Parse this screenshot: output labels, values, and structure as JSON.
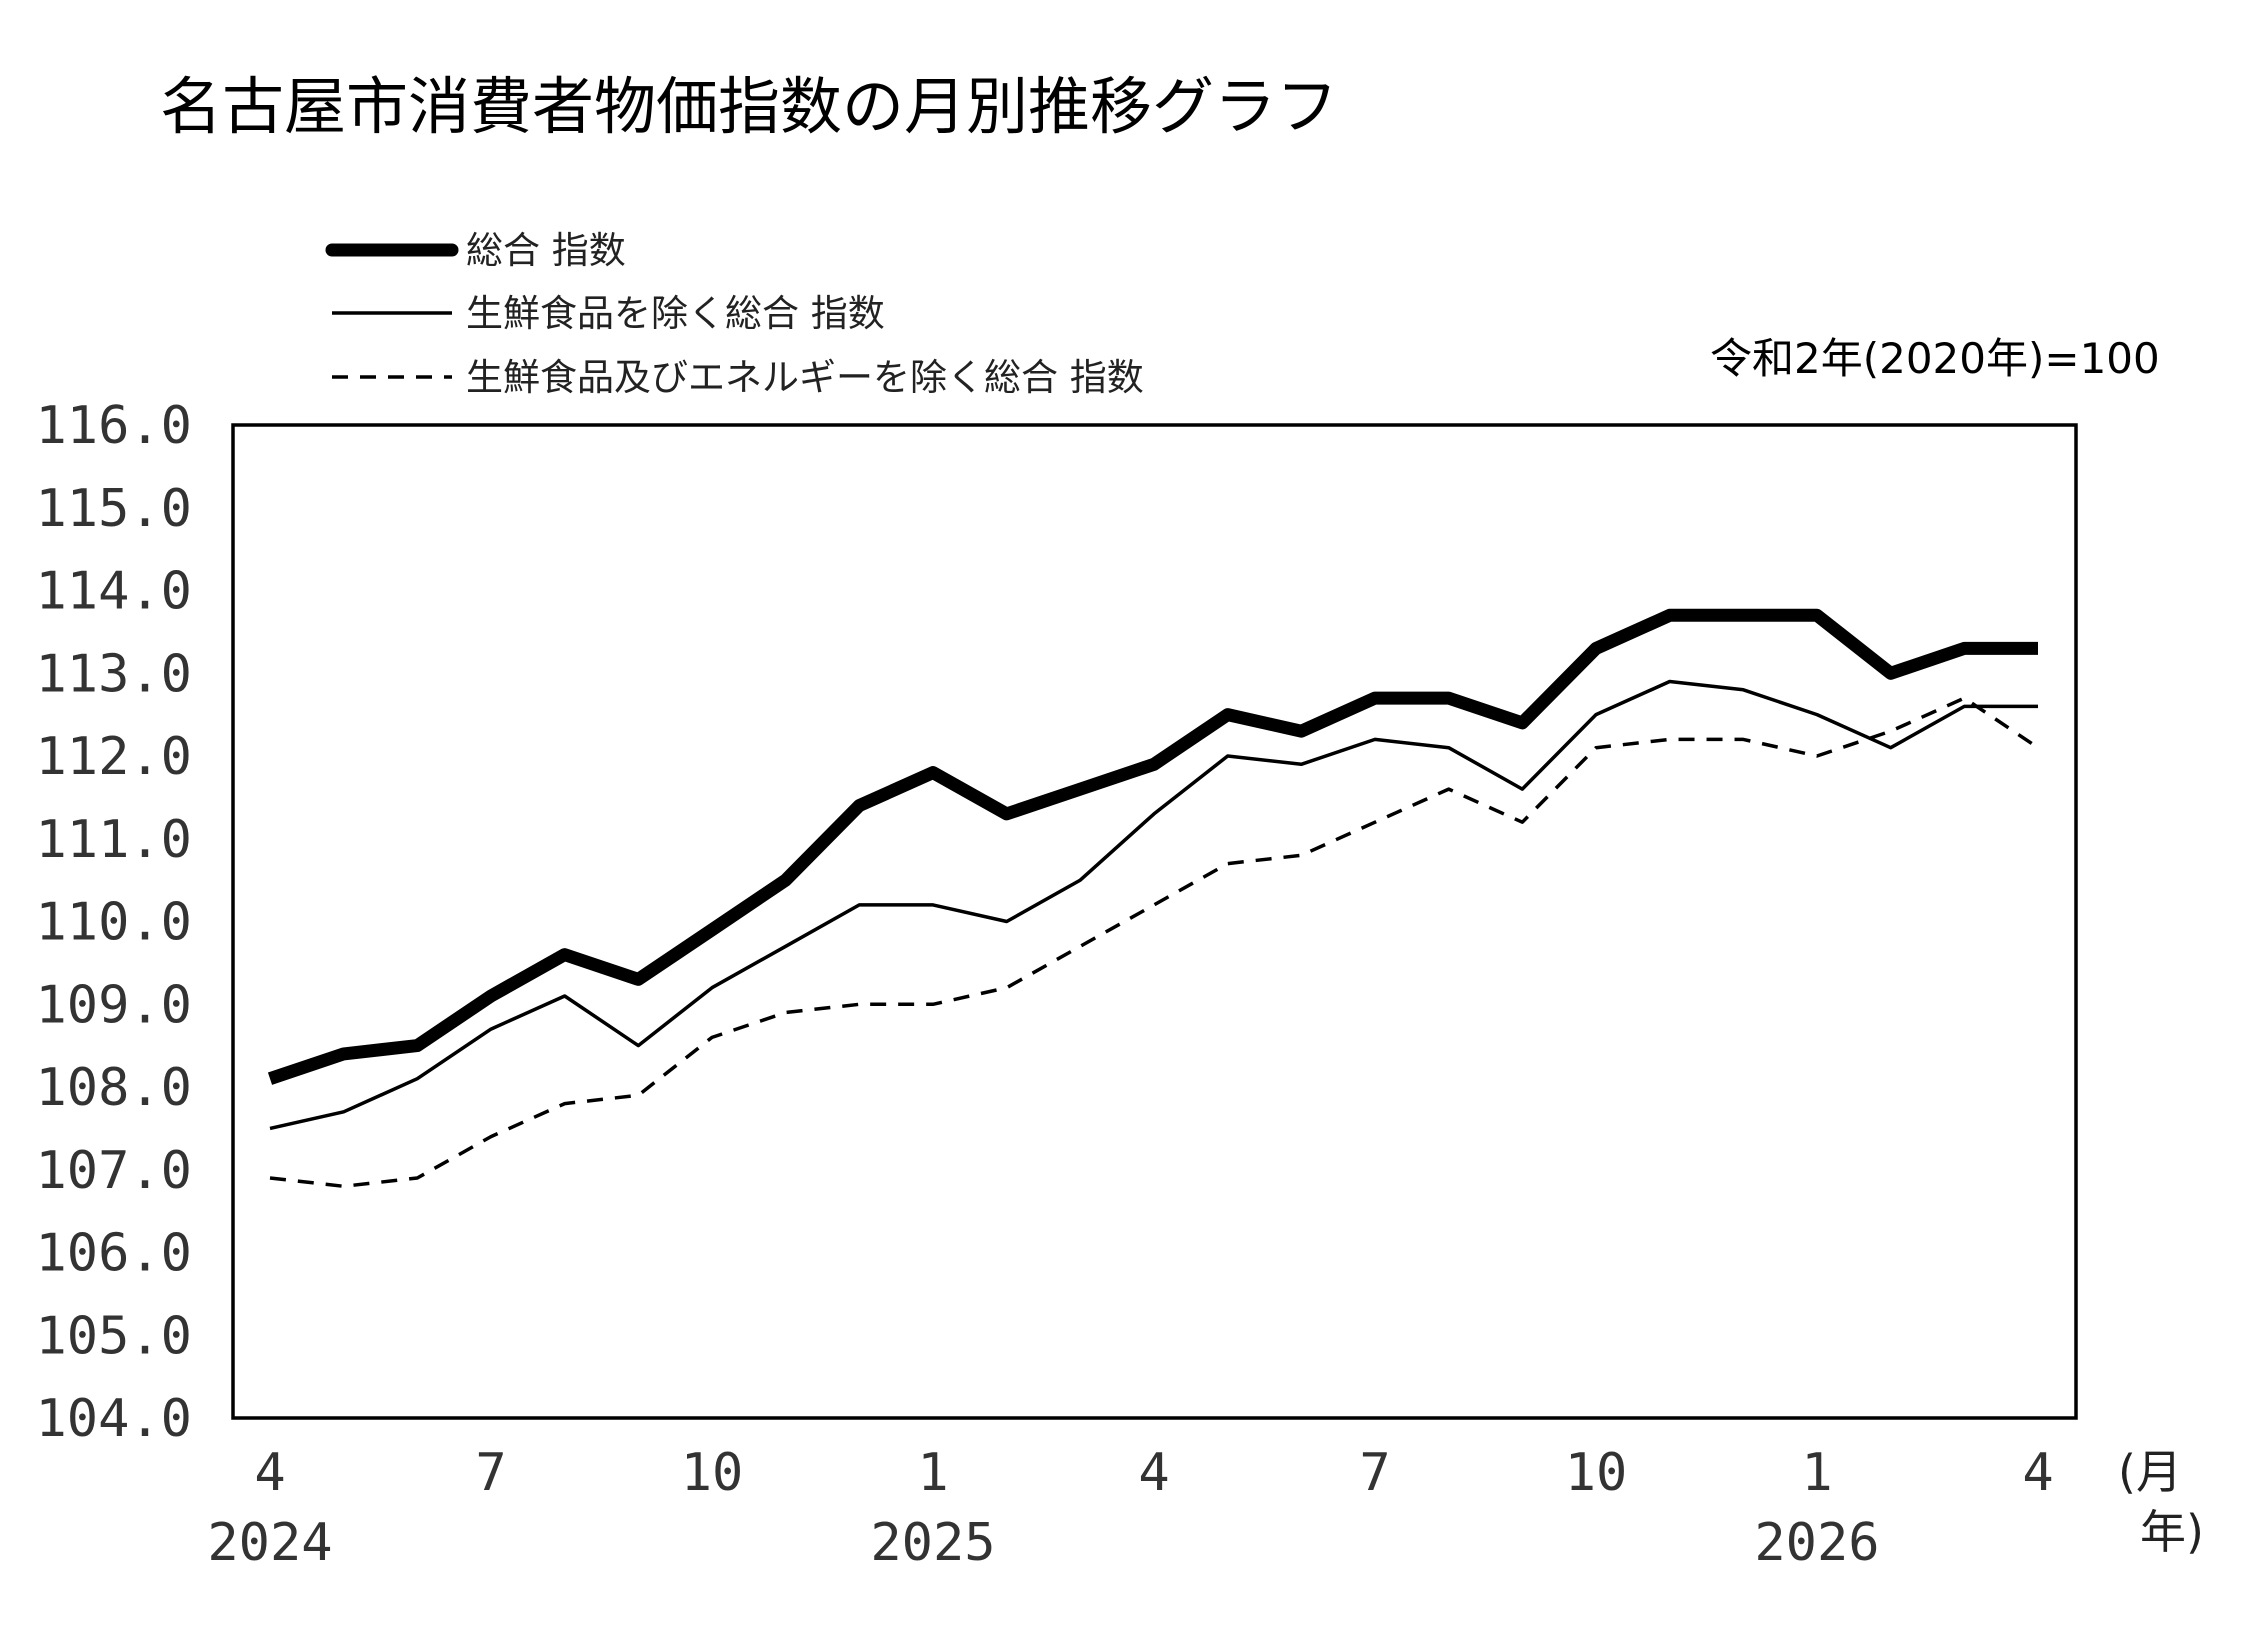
{
  "chart_data": {
    "type": "line",
    "title": "名古屋市消費者物価指数の月別推移グラフ",
    "base_note": "令和2年(2020年)=100",
    "xlabel": "(月\n年)",
    "x_unit_month": "(月",
    "x_unit_year": "年)",
    "ylabel": "",
    "ylim": [
      104.0,
      116.0
    ],
    "y_ticks": [
      "104.0",
      "105.0",
      "106.0",
      "107.0",
      "108.0",
      "109.0",
      "110.0",
      "111.0",
      "112.0",
      "113.0",
      "114.0",
      "115.0",
      "116.0"
    ],
    "categories": [
      "2024-04",
      "2024-05",
      "2024-06",
      "2024-07",
      "2024-08",
      "2024-09",
      "2024-10",
      "2024-11",
      "2024-12",
      "2025-01",
      "2025-02",
      "2025-03",
      "2025-04",
      "2025-05",
      "2025-06",
      "2025-07",
      "2025-08",
      "2025-09",
      "2025-10",
      "2025-11",
      "2025-12",
      "2026-01",
      "2026-02",
      "2026-03",
      "2026-04"
    ],
    "x_month_labels": [
      {
        "index": 0,
        "label": "4"
      },
      {
        "index": 3,
        "label": "7"
      },
      {
        "index": 6,
        "label": "10"
      },
      {
        "index": 9,
        "label": "1"
      },
      {
        "index": 12,
        "label": "4"
      },
      {
        "index": 15,
        "label": "7"
      },
      {
        "index": 18,
        "label": "10"
      },
      {
        "index": 21,
        "label": "1"
      },
      {
        "index": 24,
        "label": "4"
      }
    ],
    "x_year_labels": [
      {
        "index": 0,
        "label": "2024"
      },
      {
        "index": 9,
        "label": "2025"
      },
      {
        "index": 21,
        "label": "2026"
      }
    ],
    "legend_position": "top-left",
    "grid": false,
    "series": [
      {
        "name": "総合 指数",
        "style": "thick",
        "values": [
          108.1,
          108.4,
          108.5,
          109.1,
          109.6,
          109.3,
          109.9,
          110.5,
          111.4,
          111.8,
          111.3,
          111.6,
          111.9,
          112.5,
          112.3,
          112.7,
          112.7,
          112.4,
          113.3,
          113.7,
          113.7,
          113.7,
          113.0,
          113.3,
          113.3
        ]
      },
      {
        "name": "生鮮食品を除く総合 指数",
        "style": "thin",
        "values": [
          107.5,
          107.7,
          108.1,
          108.7,
          109.1,
          108.5,
          109.2,
          109.7,
          110.2,
          110.2,
          110.0,
          110.5,
          111.3,
          112.0,
          111.9,
          112.2,
          112.1,
          111.6,
          112.5,
          112.9,
          112.8,
          112.5,
          112.1,
          112.6,
          112.6
        ]
      },
      {
        "name": "生鮮食品及びエネルギーを除く総合 指数",
        "style": "dashed",
        "values": [
          106.9,
          106.8,
          106.9,
          107.4,
          107.8,
          107.9,
          108.6,
          108.9,
          109.0,
          109.0,
          109.2,
          109.7,
          110.2,
          110.7,
          110.8,
          111.2,
          111.6,
          111.2,
          112.1,
          112.2,
          112.2,
          112.0,
          112.3,
          112.7,
          112.1
        ]
      }
    ],
    "colors": {
      "line": "#000000",
      "axis": "#000000",
      "text": "#333333"
    }
  }
}
